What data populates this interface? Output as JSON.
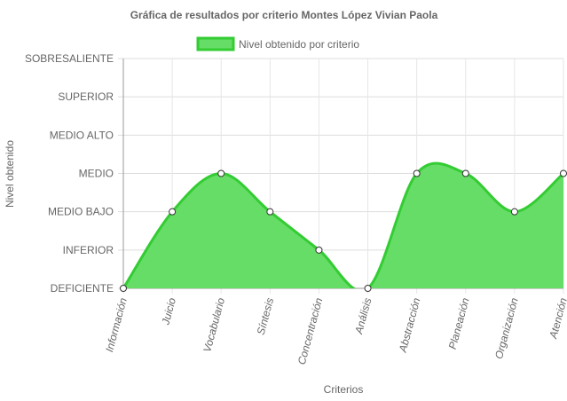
{
  "chart_data": {
    "type": "area",
    "title": "Gráfica de resultados por criterio  Montes López Vivian Paola",
    "xlabel": "Criterios",
    "ylabel": "Nivel obtenido",
    "y_levels": [
      "DEFICIENTE",
      "INFERIOR",
      "MEDIO BAJO",
      "MEDIO",
      "MEDIO ALTO",
      "SUPERIOR",
      "SOBRESALIENTE"
    ],
    "ylim": [
      0,
      6
    ],
    "categories": [
      "Información",
      "Juicio",
      "Vocabulario",
      "Síntesis",
      "Concentración",
      "Análisis",
      "Abstracción",
      "Planeación",
      "Organización",
      "Atención"
    ],
    "series": [
      {
        "name": "Nivel obtenido por criterio",
        "values": [
          0,
          2,
          3,
          2,
          1,
          0,
          3,
          3,
          2,
          3
        ],
        "fill_color": "#66dd66",
        "line_color": "#33cc33"
      }
    ],
    "grid": true,
    "legend_position": "top-center"
  }
}
